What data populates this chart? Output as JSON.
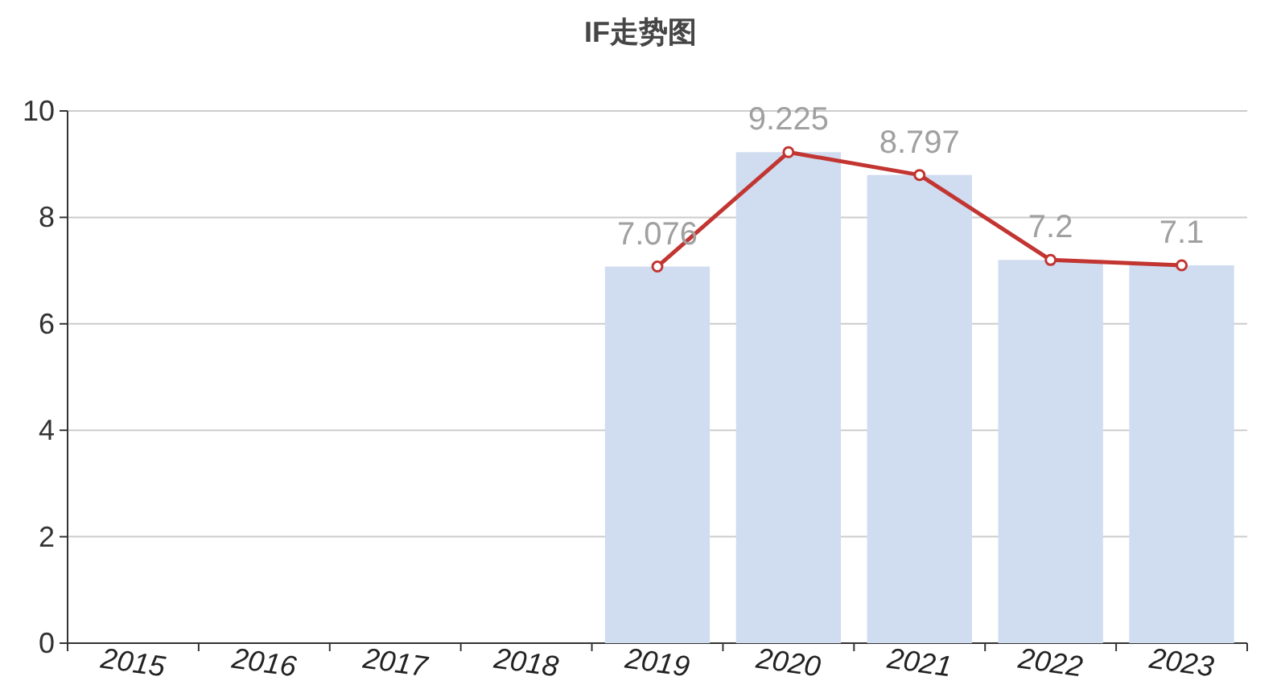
{
  "chart_data": {
    "type": "bar",
    "title": "IF走势图",
    "categories": [
      "2015",
      "2016",
      "2017",
      "2018",
      "2019",
      "2020",
      "2021",
      "2022",
      "2023"
    ],
    "series": [
      {
        "color": "#d0dcf0",
        "values": [
          null,
          null,
          null,
          null,
          7.076,
          9.225,
          8.797,
          7.2,
          7.1
        ],
        "value_labels": [
          null,
          null,
          null,
          null,
          "7.076",
          "9.225",
          "8.797",
          "7.2",
          "7.1"
        ]
      },
      {
        "type": "line",
        "color": "#c23531",
        "marker": "circle",
        "values": [
          null,
          null,
          null,
          null,
          7.076,
          9.225,
          8.797,
          7.2,
          7.1
        ]
      }
    ],
    "ylim": [
      0,
      10
    ],
    "yticks": [
      0,
      2,
      4,
      6,
      8,
      10
    ],
    "grid": "y"
  }
}
